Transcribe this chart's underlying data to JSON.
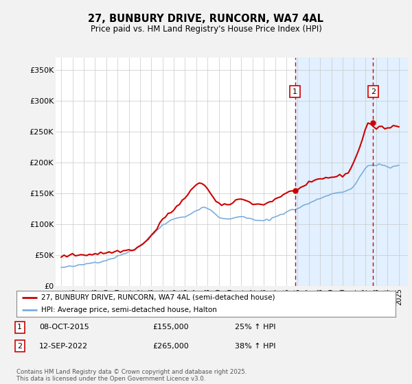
{
  "title": "27, BUNBURY DRIVE, RUNCORN, WA7 4AL",
  "subtitle": "Price paid vs. HM Land Registry's House Price Index (HPI)",
  "ytick_labels": [
    "£0",
    "£50K",
    "£100K",
    "£150K",
    "£200K",
    "£250K",
    "£300K",
    "£350K"
  ],
  "yticks": [
    0,
    50000,
    100000,
    150000,
    200000,
    250000,
    300000,
    350000
  ],
  "ylim": [
    0,
    370000
  ],
  "xlim_start": 1994.5,
  "xlim_end": 2025.8,
  "bg_color": "#f0f4ff",
  "plot_bg": "#ffffff",
  "grid_color": "#c8c8c8",
  "red_color": "#cc0000",
  "blue_color": "#7aaedc",
  "shade_color": "#ddeeff",
  "annotation1": [
    "1",
    "08-OCT-2015",
    "£155,000",
    "25% ↑ HPI"
  ],
  "annotation2": [
    "2",
    "12-SEP-2022",
    "£265,000",
    "38% ↑ HPI"
  ],
  "legend_line1": "27, BUNBURY DRIVE, RUNCORN, WA7 4AL (semi-detached house)",
  "legend_line2": "HPI: Average price, semi-detached house, Halton",
  "footer": "Contains HM Land Registry data © Crown copyright and database right 2025.\nThis data is licensed under the Open Government Licence v3.0.",
  "hpi_x": [
    1995.0,
    1995.25,
    1995.5,
    1995.75,
    1996.0,
    1996.25,
    1996.5,
    1996.75,
    1997.0,
    1997.25,
    1997.5,
    1997.75,
    1998.0,
    1998.25,
    1998.5,
    1998.75,
    1999.0,
    1999.25,
    1999.5,
    1999.75,
    2000.0,
    2000.25,
    2000.5,
    2000.75,
    2001.0,
    2001.25,
    2001.5,
    2001.75,
    2002.0,
    2002.25,
    2002.5,
    2002.75,
    2003.0,
    2003.25,
    2003.5,
    2003.75,
    2004.0,
    2004.25,
    2004.5,
    2004.75,
    2005.0,
    2005.25,
    2005.5,
    2005.75,
    2006.0,
    2006.25,
    2006.5,
    2006.75,
    2007.0,
    2007.25,
    2007.5,
    2007.75,
    2008.0,
    2008.25,
    2008.5,
    2008.75,
    2009.0,
    2009.25,
    2009.5,
    2009.75,
    2010.0,
    2010.25,
    2010.5,
    2010.75,
    2011.0,
    2011.25,
    2011.5,
    2011.75,
    2012.0,
    2012.25,
    2012.5,
    2012.75,
    2013.0,
    2013.25,
    2013.5,
    2013.75,
    2014.0,
    2014.25,
    2014.5,
    2014.75,
    2015.0,
    2015.25,
    2015.5,
    2015.75,
    2016.0,
    2016.25,
    2016.5,
    2016.75,
    2017.0,
    2017.25,
    2017.5,
    2017.75,
    2018.0,
    2018.25,
    2018.5,
    2018.75,
    2019.0,
    2019.25,
    2019.5,
    2019.75,
    2020.0,
    2020.25,
    2020.5,
    2020.75,
    2021.0,
    2021.25,
    2021.5,
    2021.75,
    2022.0,
    2022.25,
    2022.5,
    2022.75,
    2023.0,
    2023.25,
    2023.5,
    2023.75,
    2024.0,
    2024.25,
    2024.5,
    2024.75,
    2025.0
  ],
  "hpi_y": [
    30000,
    30500,
    31000,
    31500,
    32000,
    32500,
    33000,
    34000,
    35000,
    36000,
    37000,
    38000,
    38500,
    39000,
    40000,
    41000,
    42000,
    43500,
    45000,
    46500,
    48000,
    50000,
    52000,
    54000,
    56000,
    58000,
    60000,
    62000,
    65000,
    68000,
    72000,
    77000,
    82000,
    86000,
    90000,
    95000,
    99000,
    102000,
    105000,
    107000,
    108000,
    110000,
    111000,
    112000,
    113000,
    115000,
    117000,
    119000,
    122000,
    125000,
    127000,
    128000,
    126000,
    123000,
    119000,
    115000,
    112000,
    110000,
    109000,
    108000,
    109000,
    110000,
    112000,
    113000,
    112000,
    111000,
    110000,
    109000,
    108000,
    107000,
    106000,
    105000,
    106000,
    107000,
    108000,
    110000,
    112000,
    114000,
    116000,
    118000,
    120000,
    122000,
    123000,
    124000,
    126000,
    128000,
    130000,
    132000,
    134000,
    136000,
    138000,
    140000,
    142000,
    144000,
    146000,
    148000,
    149000,
    150000,
    151000,
    152000,
    153000,
    154000,
    156000,
    158000,
    162000,
    168000,
    175000,
    183000,
    190000,
    195000,
    197000,
    196000,
    195000,
    196000,
    196000,
    195000,
    193000,
    192000,
    193000,
    194000,
    195000
  ],
  "price_x": [
    1995.0,
    1995.25,
    1995.5,
    1995.75,
    1996.0,
    1996.25,
    1996.5,
    1996.75,
    1997.0,
    1997.25,
    1997.5,
    1997.75,
    1998.0,
    1998.25,
    1998.5,
    1998.75,
    1999.0,
    1999.25,
    1999.5,
    1999.75,
    2000.0,
    2000.25,
    2000.5,
    2000.75,
    2001.0,
    2001.25,
    2001.5,
    2001.75,
    2002.0,
    2002.25,
    2002.5,
    2002.75,
    2003.0,
    2003.25,
    2003.5,
    2003.75,
    2004.0,
    2004.25,
    2004.5,
    2004.75,
    2005.0,
    2005.25,
    2005.5,
    2005.75,
    2006.0,
    2006.25,
    2006.5,
    2006.75,
    2007.0,
    2007.25,
    2007.5,
    2007.75,
    2008.0,
    2008.25,
    2008.5,
    2008.75,
    2009.0,
    2009.25,
    2009.5,
    2009.75,
    2010.0,
    2010.25,
    2010.5,
    2010.75,
    2011.0,
    2011.25,
    2011.5,
    2011.75,
    2012.0,
    2012.25,
    2012.5,
    2012.75,
    2013.0,
    2013.25,
    2013.5,
    2013.75,
    2014.0,
    2014.25,
    2014.5,
    2014.75,
    2015.0,
    2015.25,
    2015.5,
    2015.75,
    2016.0,
    2016.25,
    2016.5,
    2016.75,
    2017.0,
    2017.25,
    2017.5,
    2017.75,
    2018.0,
    2018.25,
    2018.5,
    2018.75,
    2019.0,
    2019.25,
    2019.5,
    2019.75,
    2020.0,
    2020.25,
    2020.5,
    2020.75,
    2021.0,
    2021.25,
    2021.5,
    2021.75,
    2022.0,
    2022.25,
    2022.5,
    2022.75,
    2023.0,
    2023.25,
    2023.5,
    2023.75,
    2024.0,
    2024.25,
    2024.5,
    2024.75,
    2025.0
  ],
  "price_y": [
    48000,
    48500,
    49000,
    49500,
    50000,
    50200,
    50500,
    50800,
    51000,
    51200,
    51500,
    51800,
    52000,
    52500,
    53000,
    53500,
    54000,
    54500,
    55000,
    55500,
    56000,
    56500,
    57000,
    57500,
    58000,
    59000,
    60000,
    62000,
    65000,
    68000,
    72000,
    77000,
    82000,
    87000,
    93000,
    100000,
    108000,
    113000,
    117000,
    120000,
    122000,
    128000,
    133000,
    138000,
    142000,
    147000,
    153000,
    160000,
    165000,
    168000,
    167000,
    163000,
    157000,
    150000,
    143000,
    137000,
    133000,
    131000,
    130000,
    131000,
    133000,
    136000,
    139000,
    141000,
    140000,
    139000,
    138000,
    137000,
    134000,
    133000,
    132000,
    132000,
    133000,
    134000,
    136000,
    138000,
    141000,
    143000,
    146000,
    148000,
    150000,
    152000,
    153000,
    155000,
    157000,
    159000,
    161000,
    163000,
    165000,
    168000,
    170000,
    172000,
    173000,
    174000,
    175000,
    176000,
    176500,
    177000,
    177500,
    178000,
    179000,
    181000,
    185000,
    192000,
    200000,
    212000,
    225000,
    238000,
    252000,
    265000,
    262000,
    258000,
    255000,
    256000,
    258000,
    257000,
    256000,
    257000,
    259000,
    260000,
    258000
  ],
  "vline1_x": 2015.77,
  "vline2_x": 2022.71,
  "marker1_x": 2015.77,
  "marker1_y": 155000,
  "marker2_x": 2022.71,
  "marker2_y": 265000,
  "shade_start": 2015.77,
  "shade_end": 2025.8
}
